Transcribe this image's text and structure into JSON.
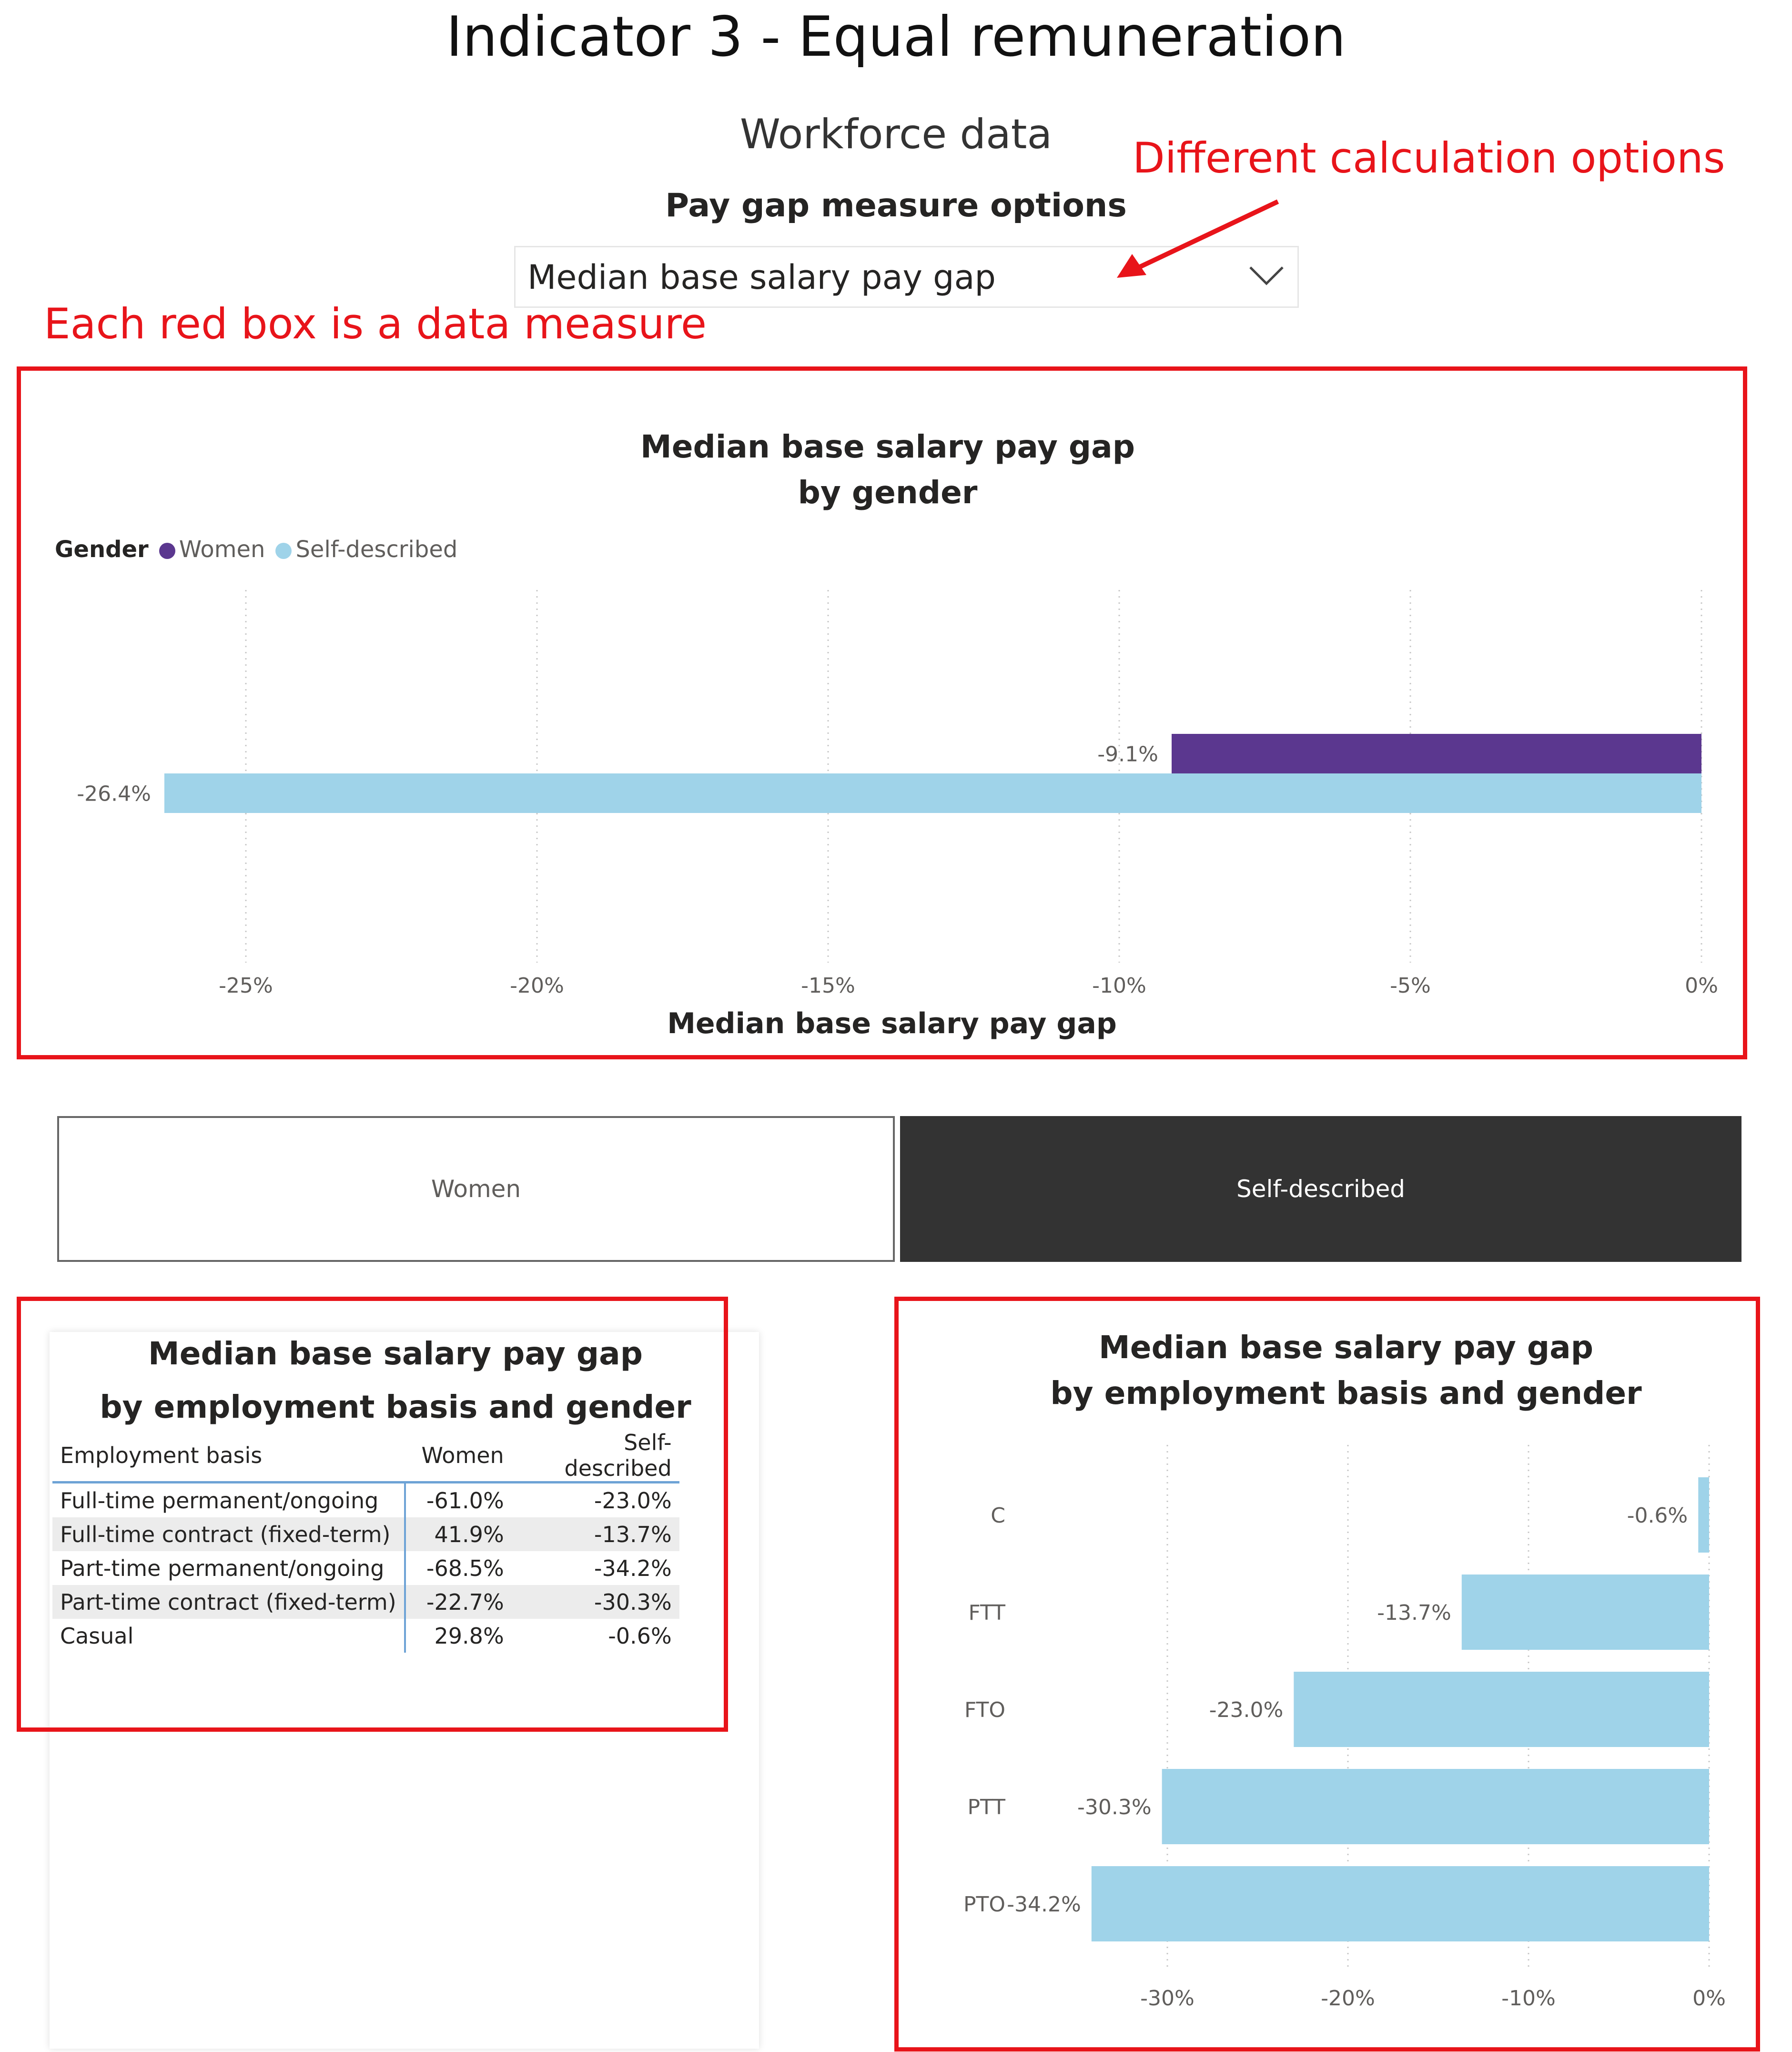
{
  "page": {
    "title": "Indicator 3 - Equal remuneration",
    "section_title": "Workforce data"
  },
  "slicer": {
    "title": "Pay gap measure options",
    "selected": "Median base salary pay gap",
    "icon": "chevron-down-icon"
  },
  "annotations": {
    "calc_options": "Different calculation options",
    "red_box_note": "Each red box is a data measure",
    "color": "#e8141a"
  },
  "colors": {
    "women": "#5b378f",
    "self_described": "#9fd3e9",
    "button_selected_bg": "#333333"
  },
  "buttons": {
    "women": "Women",
    "self_described": "Self-described",
    "selected": "Self-described"
  },
  "chart_data": [
    {
      "type": "bar",
      "orientation": "horizontal",
      "title_line1": "Median base salary pay gap",
      "title_line2": "by gender",
      "legend_title": "Gender",
      "xlabel": "Median base salary pay gap",
      "ylabel": "",
      "xlim": [
        -26.5,
        0
      ],
      "xticks": [
        "-25%",
        "-20%",
        "-15%",
        "-10%",
        "-5%",
        "0%"
      ],
      "xtick_values": [
        -25,
        -20,
        -15,
        -10,
        -5,
        0
      ],
      "grid": true,
      "legend": "top-left",
      "series": [
        {
          "name": "Women",
          "values": [
            -9.1
          ],
          "labels": [
            "-9.1%"
          ]
        },
        {
          "name": "Self-described",
          "values": [
            -26.4
          ],
          "labels": [
            "-26.4%"
          ]
        }
      ]
    },
    {
      "type": "table",
      "title_line1": "Median base salary pay gap",
      "title_line2": "by employment basis and gender",
      "columns": [
        "Employment basis",
        "Women",
        "Self-described"
      ],
      "rows": [
        [
          "Full-time permanent/ongoing",
          "-61.0%",
          "-23.0%"
        ],
        [
          "Full-time contract (fixed-term)",
          "41.9%",
          "-13.7%"
        ],
        [
          "Part-time permanent/ongoing",
          "-68.5%",
          "-34.2%"
        ],
        [
          "Part-time contract (fixed-term)",
          "-22.7%",
          "-30.3%"
        ],
        [
          "Casual",
          "29.8%",
          "-0.6%"
        ]
      ]
    },
    {
      "type": "bar",
      "orientation": "horizontal",
      "title_line1": "Median base salary pay gap",
      "title_line2": "by employment basis and gender",
      "categories": [
        "C",
        "FTT",
        "FTO",
        "PTT",
        "PTO"
      ],
      "xlim": [
        -35,
        0
      ],
      "xticks": [
        "-30%",
        "-20%",
        "-10%",
        "0%"
      ],
      "xtick_values": [
        -30,
        -20,
        -10,
        0
      ],
      "grid": true,
      "series": [
        {
          "name": "Self-described",
          "values": [
            -0.6,
            -13.7,
            -23.0,
            -30.3,
            -34.2
          ],
          "labels": [
            "-0.6%",
            "-13.7%",
            "-23.0%",
            "-30.3%",
            "-34.2%"
          ]
        }
      ]
    }
  ]
}
